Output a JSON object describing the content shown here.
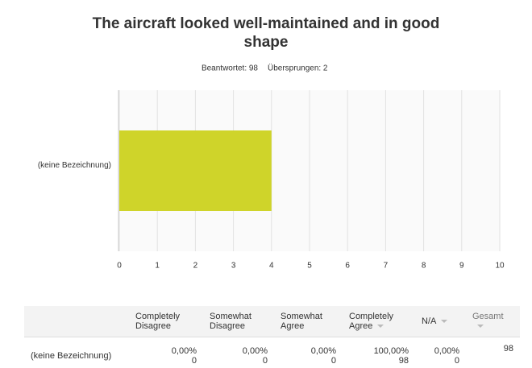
{
  "chart_data": {
    "type": "hbar",
    "title": "The aircraft looked well-maintained and in good shape",
    "answered": "Beantwortet: 98",
    "skipped": "Übersprungen: 2",
    "categories": [
      "(keine Bezeichnung)"
    ],
    "values": [
      4
    ],
    "color": "#cfd42a",
    "xlim": [
      0,
      10
    ],
    "xticks": [
      0,
      1,
      2,
      3,
      4,
      5,
      6,
      7,
      8,
      9,
      10
    ],
    "grid": true
  },
  "table": {
    "headers": [
      "Completely Disagree",
      "Somewhat Disagree",
      "Somewhat Agree",
      "Completely Agree",
      "N/A",
      "Gesamt"
    ],
    "rows": [
      {
        "label": "(keine Bezeichnung)",
        "cells": [
          {
            "percent": "0,00%",
            "count": 0
          },
          {
            "percent": "0,00%",
            "count": 0
          },
          {
            "percent": "0,00%",
            "count": 0
          },
          {
            "percent": "100,00%",
            "count": 98
          },
          {
            "percent": "0,00%",
            "count": 0
          }
        ],
        "total": 98
      }
    ]
  }
}
